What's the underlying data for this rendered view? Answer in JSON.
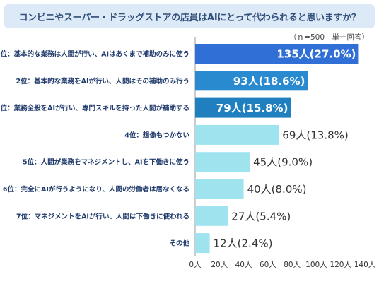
{
  "title": "コンビニやスーパー・ドラッグストアの店員はAIにとって代わられると思いますか？",
  "note": "（ｎ=500　単一回答）",
  "chart_data": {
    "type": "bar",
    "orientation": "horizontal",
    "title": "コンビニやスーパー・ドラッグストアの店員はAIにとって代わられると思いますか？",
    "categories": [
      "1位：基本的な業務は人間が行い、AIはあくまで補助のみに使う",
      "2位：基本的な業務をAIが行い、人間はその補助のみ行う",
      "3位：業務全般をAIが行い、専門スキルを持った人間が補助する",
      "4位：想像もつかない",
      "5位：人間が業務をマネジメントし、AIを下働きに使う",
      "6位：完全にAIが行うようになり、人間の労働者は居なくなる",
      "7位：マネジメントをAIが行い、人間は下働きに使われる",
      "その他"
    ],
    "values": [
      135,
      93,
      79,
      69,
      45,
      40,
      27,
      12
    ],
    "value_labels": [
      "135人(27.0%)",
      "93人(18.6%)",
      "79人(15.8%)",
      "69人(13.8%)",
      "45人(9.0%)",
      "40人(8.0%)",
      "27人(5.4%)",
      "12人(2.4%)"
    ],
    "xlim": [
      0,
      140
    ],
    "xticks": [
      "0人",
      "20人",
      "40人",
      "60人",
      "80人",
      "100人",
      "120人",
      "140人"
    ],
    "colors": {
      "rank1": "#2f6fd6",
      "rank2": "#2a8ad0",
      "rank3": "#1f7fbf",
      "rest": "#9fe3ee",
      "label_dark": "#ffffff",
      "label_light": "#333333"
    },
    "grid": false
  }
}
